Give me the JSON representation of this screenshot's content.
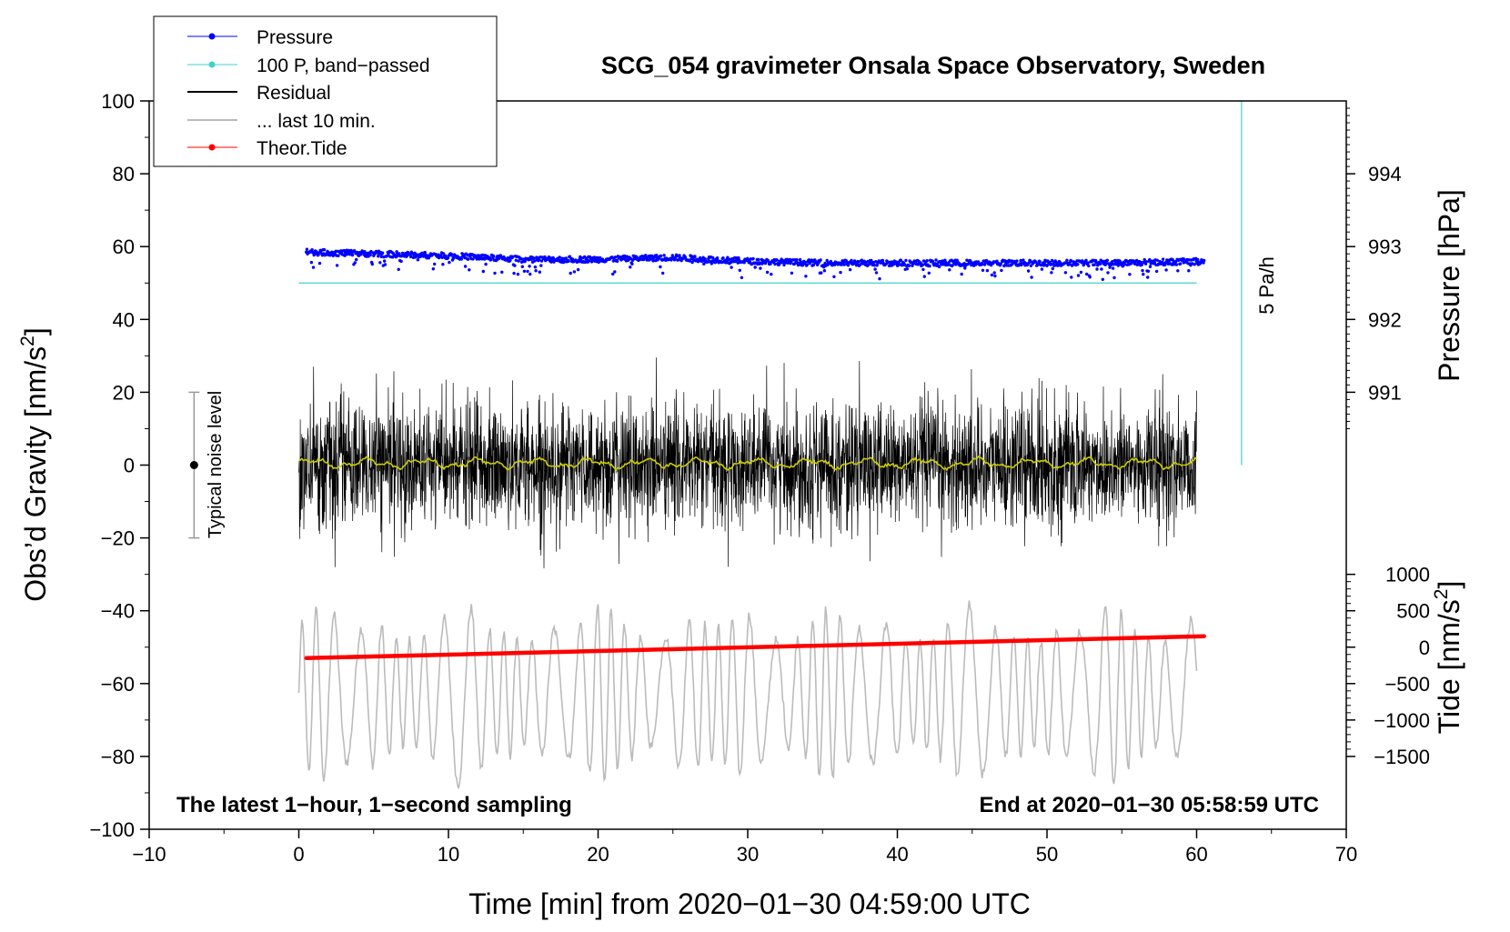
{
  "chart_data": {
    "type": "line",
    "title": "SCG_054 gravimeter Onsala Space Observatory, Sweden",
    "xlabel": "Time [min] from 2020−01−30 04:59:00 UTC",
    "ylabel_left": "Obs’d Gravity [nm/s",
    "ylabel_left_sup": "2",
    "ylabel_left_tail": "]",
    "ylabel_pressure": "Pressure [hPa]",
    "ylabel_tide": "Tide [nm/s",
    "ylabel_tide_sup": "2",
    "ylabel_tide_tail": "]",
    "xlim": [
      -10,
      70
    ],
    "ylim": [
      -100,
      100
    ],
    "x_ticks": [
      -10,
      0,
      10,
      20,
      30,
      40,
      50,
      60,
      70
    ],
    "x_tick_labels": [
      "−10",
      "0",
      "10",
      "20",
      "30",
      "40",
      "50",
      "60",
      "70"
    ],
    "y_ticks": [
      -100,
      -80,
      -60,
      -40,
      -20,
      0,
      20,
      40,
      60,
      80,
      100
    ],
    "y_tick_labels": [
      "−100",
      "−80",
      "−60",
      "−40",
      "−20",
      "0",
      "20",
      "40",
      "60",
      "80",
      "100"
    ],
    "pressure_axis": {
      "ticks": [
        991,
        992,
        993,
        994
      ],
      "tick_labels": [
        "991",
        "992",
        "993",
        "994"
      ],
      "gravity_at_993": 60,
      "gravity_per_hpa": 20
    },
    "tide_axis": {
      "ticks": [
        -1500,
        -1000,
        -500,
        0,
        500,
        1000
      ],
      "tick_labels": [
        "−1500",
        "−1000",
        "−500",
        "0",
        "500",
        "1000"
      ],
      "gravity_at_zero": -50,
      "gravity_per_unit": 0.02
    },
    "legend": {
      "placement": "top-left",
      "entries": [
        {
          "label": "Pressure",
          "color": "#0000ff",
          "marker": true
        },
        {
          "label": "100 P, band−passed",
          "color": "#40d0d0",
          "marker": true
        },
        {
          "label": "Residual",
          "color": "#000000",
          "marker": false
        },
        {
          "label": "... last 10 min.",
          "color": "#bbbbbb",
          "marker": false
        },
        {
          "label": "Theor.Tide",
          "color": "#ff0000",
          "marker": true
        }
      ]
    },
    "series": [
      {
        "name": "Pressure",
        "color": "#0000ff",
        "x": [
          0.5,
          5,
          10,
          15,
          20,
          25,
          30,
          35,
          40,
          45,
          50,
          55,
          60.5
        ],
        "y": [
          58.5,
          58,
          57.5,
          56.5,
          56.5,
          57,
          56,
          55.5,
          55.5,
          55.5,
          55.5,
          55.5,
          56
        ]
      },
      {
        "name": "100 P, band-passed",
        "color": "#40d0d0",
        "x": [
          0,
          60
        ],
        "y": [
          50,
          50
        ]
      },
      {
        "name": "Residual",
        "color": "#000000",
        "x": [
          0,
          60
        ],
        "amplitude": 20,
        "peak_min": -35,
        "peak_max": 32
      },
      {
        "name": "Residual smoothed",
        "color": "#cccc00",
        "x": [
          0,
          60
        ],
        "y": [
          0.5,
          0.5
        ]
      },
      {
        "name": "... last 10 min.",
        "color": "#bbbbbb",
        "x": [
          0,
          60
        ],
        "center": -63,
        "amplitude": 25
      },
      {
        "name": "Theor.Tide",
        "color": "#ff0000",
        "x": [
          0.5,
          60.5
        ],
        "y": [
          -53,
          -47
        ]
      }
    ],
    "rate_bar": {
      "label": "5 Pa/h",
      "color": "#40d0d0",
      "x": 63,
      "y_from": 0,
      "y_to": 100
    },
    "noise_bar": {
      "label": "Typical noise level",
      "x": -7,
      "center": 0,
      "low": -20,
      "high": 20
    },
    "annotation_left": "The latest 1−hour, 1−second sampling",
    "annotation_right": "End at 2020−01−30 05:58:59 UTC"
  }
}
